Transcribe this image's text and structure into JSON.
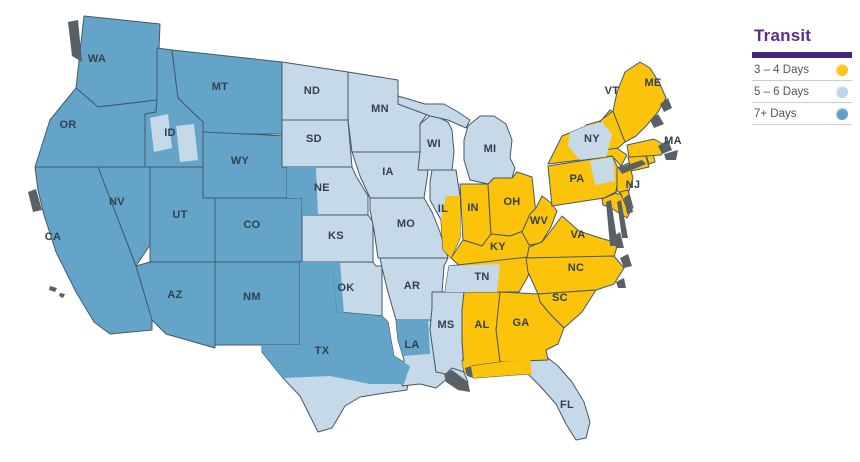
{
  "legend": {
    "title": "Transit",
    "title_color": "#5c2d91",
    "bar_color": "#46257e",
    "items": [
      {
        "label": "3 – 4 Days",
        "key": "d34",
        "color": "#fbc41a"
      },
      {
        "label": "5 – 6 Days",
        "key": "d56",
        "color": "#bed5e7"
      },
      {
        "label": "7+ Days",
        "key": "d7",
        "color": "#5fa0c4"
      }
    ]
  },
  "map": {
    "colors": {
      "d34": "#fcc30b",
      "d56": "#c6d9e9",
      "d7": "#64a4c9",
      "border": "#44586b",
      "water": "#5a6166",
      "label": "#32414e"
    },
    "states": [
      {
        "id": "WA",
        "label": "WA",
        "category": "d7"
      },
      {
        "id": "OR",
        "label": "OR",
        "category": "d7"
      },
      {
        "id": "CA",
        "label": "CA",
        "category": "d7"
      },
      {
        "id": "NV",
        "label": "NV",
        "category": "d7"
      },
      {
        "id": "ID",
        "label": "ID",
        "category": "d7"
      },
      {
        "id": "MT",
        "label": "MT",
        "category": "d7"
      },
      {
        "id": "WY",
        "label": "WY",
        "category": "d7"
      },
      {
        "id": "UT",
        "label": "UT",
        "category": "d7"
      },
      {
        "id": "CO",
        "label": "CO",
        "category": "d7"
      },
      {
        "id": "AZ",
        "label": "AZ",
        "category": "d7"
      },
      {
        "id": "NM",
        "label": "NM",
        "category": "d7"
      },
      {
        "id": "ND",
        "label": "ND",
        "category": "d56"
      },
      {
        "id": "SD",
        "label": "SD",
        "category": "d56"
      },
      {
        "id": "NE",
        "label": "NE",
        "category": "d56"
      },
      {
        "id": "KS",
        "label": "KS",
        "category": "d56"
      },
      {
        "id": "OK",
        "label": "OK",
        "category": "d56"
      },
      {
        "id": "TX",
        "label": "TX",
        "category": "d56"
      },
      {
        "id": "MN",
        "label": "MN",
        "category": "d56"
      },
      {
        "id": "IA",
        "label": "IA",
        "category": "d56"
      },
      {
        "id": "MO",
        "label": "MO",
        "category": "d56"
      },
      {
        "id": "AR",
        "label": "AR",
        "category": "d56"
      },
      {
        "id": "LA",
        "label": "LA",
        "category": "d56"
      },
      {
        "id": "WI",
        "label": "WI",
        "category": "d56"
      },
      {
        "id": "IL",
        "label": "IL",
        "category": "d56"
      },
      {
        "id": "MI",
        "label": "MI",
        "category": "d56"
      },
      {
        "id": "MS",
        "label": "MS",
        "category": "d56"
      },
      {
        "id": "FL",
        "label": "FL",
        "category": "d56"
      },
      {
        "id": "IN",
        "label": "IN",
        "category": "d34"
      },
      {
        "id": "OH",
        "label": "OH",
        "category": "d34"
      },
      {
        "id": "KY",
        "label": "KY",
        "category": "d34"
      },
      {
        "id": "TN",
        "label": "TN",
        "category": "d34"
      },
      {
        "id": "WV",
        "label": "WV",
        "category": "d34"
      },
      {
        "id": "VA",
        "label": "VA",
        "category": "d34"
      },
      {
        "id": "NC",
        "label": "NC",
        "category": "d34"
      },
      {
        "id": "SC",
        "label": "SC",
        "category": "d34"
      },
      {
        "id": "GA",
        "label": "GA",
        "category": "d34"
      },
      {
        "id": "AL",
        "label": "AL",
        "category": "d34"
      },
      {
        "id": "PA",
        "label": "PA",
        "category": "d34"
      },
      {
        "id": "NY",
        "label": "NY",
        "category": "d34"
      },
      {
        "id": "NJ",
        "label": "NJ",
        "category": "d34"
      },
      {
        "id": "MD",
        "label": "",
        "category": "d34"
      },
      {
        "id": "DE",
        "label": "",
        "category": "d34"
      },
      {
        "id": "CT",
        "label": "",
        "category": "d34"
      },
      {
        "id": "RI",
        "label": "",
        "category": "d34"
      },
      {
        "id": "MA",
        "label": "MA",
        "category": "d34"
      },
      {
        "id": "VT",
        "label": "VT",
        "category": "d34"
      },
      {
        "id": "NH",
        "label": "",
        "category": "d34"
      },
      {
        "id": "ME",
        "label": "ME",
        "category": "d34"
      }
    ],
    "patches": [
      {
        "id": "ID-1",
        "state": "ID",
        "category": "d56"
      },
      {
        "id": "ID-2",
        "state": "ID",
        "category": "d56"
      },
      {
        "id": "NE-W",
        "state": "NE",
        "category": "d7"
      },
      {
        "id": "OK-W",
        "state": "OK",
        "category": "d7"
      },
      {
        "id": "TX-N",
        "state": "TX",
        "category": "d7"
      },
      {
        "id": "LA-N",
        "state": "LA",
        "category": "d7"
      },
      {
        "id": "IL-E",
        "state": "IL",
        "category": "d34"
      },
      {
        "id": "TN-W",
        "state": "TN",
        "category": "d56"
      },
      {
        "id": "FL-P",
        "state": "FL",
        "category": "d34"
      },
      {
        "id": "NY-C",
        "state": "NY",
        "category": "d56"
      },
      {
        "id": "PA-N",
        "state": "PA",
        "category": "d56"
      }
    ]
  }
}
